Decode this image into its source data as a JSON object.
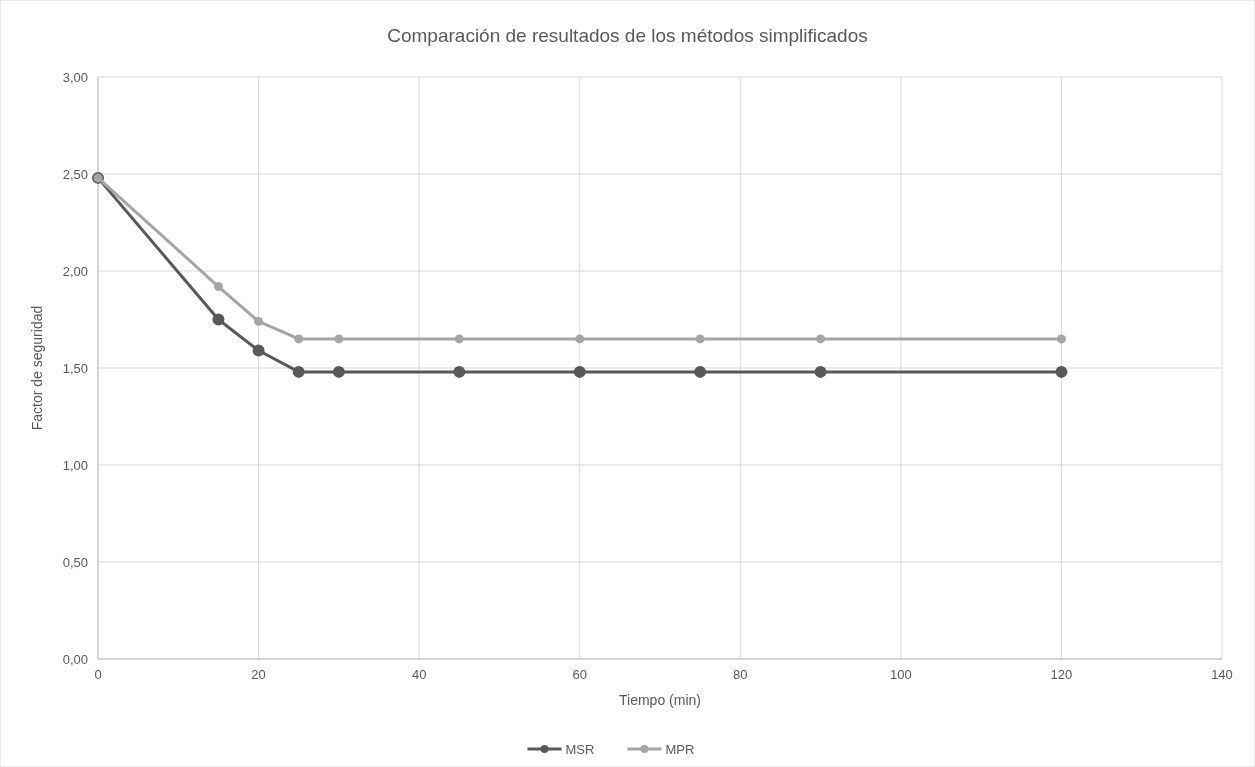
{
  "chart_data": {
    "type": "line",
    "title": "Comparación de resultados de los métodos simplificados",
    "xlabel": "Tiempo (min)",
    "ylabel": "Factor de seguridad",
    "x": [
      0,
      15,
      20,
      25,
      30,
      45,
      60,
      75,
      90,
      120
    ],
    "series": [
      {
        "name": "MSR",
        "color": "#595959",
        "values": [
          2.48,
          1.75,
          1.59,
          1.48,
          1.48,
          1.48,
          1.48,
          1.48,
          1.48,
          1.48
        ]
      },
      {
        "name": "MPR",
        "color": "#a5a5a5",
        "values": [
          2.48,
          1.92,
          1.74,
          1.65,
          1.65,
          1.65,
          1.65,
          1.65,
          1.65,
          1.65
        ]
      }
    ],
    "xlim": [
      0,
      140
    ],
    "xticks": [
      0,
      20,
      40,
      60,
      80,
      100,
      120,
      140
    ],
    "ylim": [
      0,
      3
    ],
    "yticks": [
      {
        "value": 0,
        "label": "0,00"
      },
      {
        "value": 0.5,
        "label": "0,50"
      },
      {
        "value": 1,
        "label": "1,00"
      },
      {
        "value": 1.5,
        "label": "1,50"
      },
      {
        "value": 2,
        "label": "2,00"
      },
      {
        "value": 2.5,
        "label": "2,50"
      },
      {
        "value": 3,
        "label": "3,00"
      }
    ],
    "grid": true,
    "legend": "bottom",
    "marker": "circle",
    "line_style": "solid"
  }
}
